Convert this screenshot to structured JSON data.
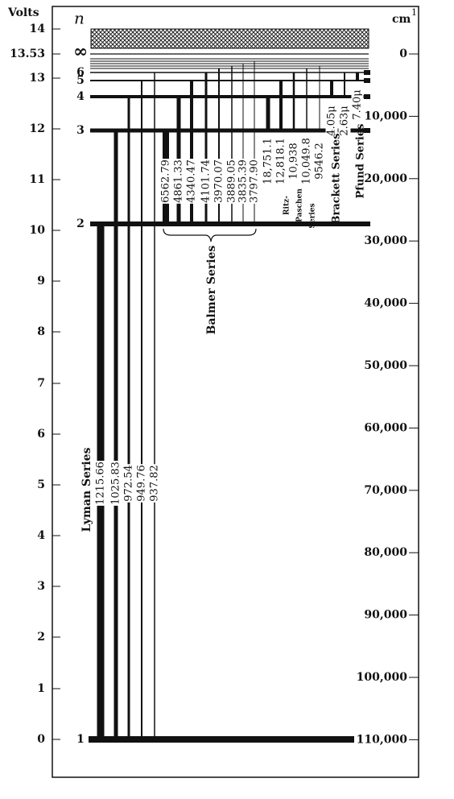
{
  "left_axis": {
    "title": "Volts",
    "ticks": [
      "14",
      "13.53",
      "13",
      "12",
      "11",
      "10",
      "9",
      "8",
      "7",
      "6",
      "5",
      "4",
      "3",
      "2",
      "1",
      "0"
    ]
  },
  "levels": {
    "title": "n",
    "labels": [
      "∞",
      "6",
      "5",
      "4",
      "3",
      "2",
      "1"
    ]
  },
  "right_axis": {
    "title": "cm",
    "superscript": "1",
    "ticks": [
      "0",
      "10,000",
      "20,000",
      "30,000",
      "40,000",
      "50,000",
      "60,000",
      "70,000",
      "80,000",
      "90,000",
      "100,000",
      "110,000"
    ]
  },
  "series": [
    {
      "name": "Lyman Series",
      "lines": [
        "1215.66",
        "1025.83",
        "972.54",
        "949.76",
        "937.82"
      ]
    },
    {
      "name": "Balmer Series",
      "lines": [
        "6562.79",
        "4861.33",
        "4340.47",
        "4101.74",
        "3970.07",
        "3889.05",
        "3835.39",
        "3797.90"
      ]
    },
    {
      "name": [
        "Ritz-",
        "Paschen",
        "Series"
      ],
      "lines": [
        "18,751.1",
        "12,818.1",
        "10,938",
        "10,049.8",
        "9546.2"
      ]
    },
    {
      "name": "Brackett Series",
      "lines": [
        "4.05μ",
        "2.63μ"
      ]
    },
    {
      "name": "Pfund Series",
      "lines": [
        "7.40μ"
      ]
    }
  ]
}
